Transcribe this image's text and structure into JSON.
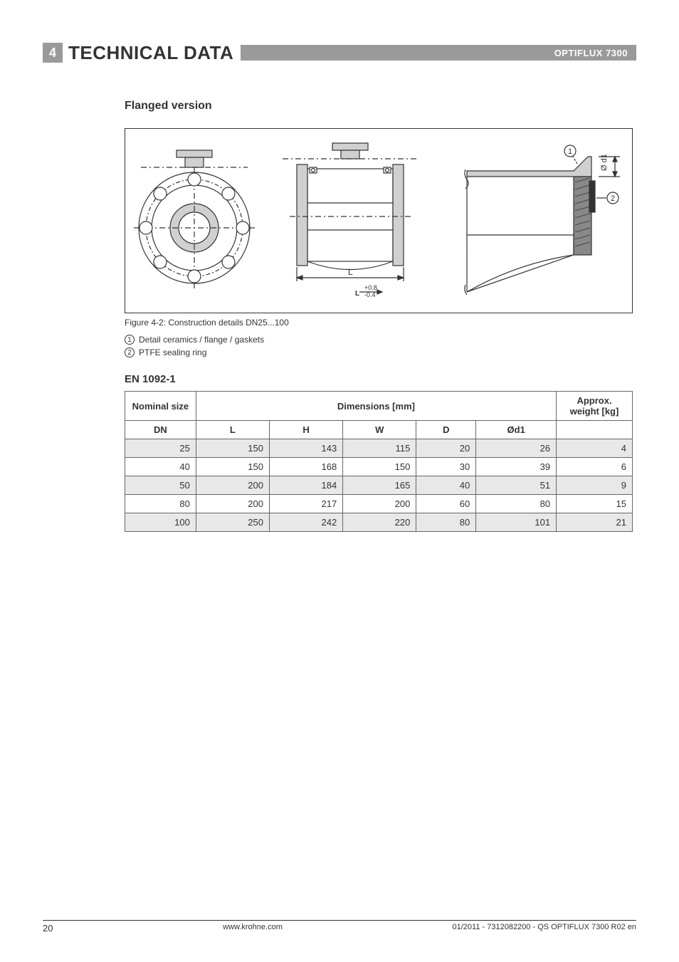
{
  "header": {
    "section_number": "4",
    "section_title": "TECHNICAL DATA",
    "product": "OPTIFLUX 7300"
  },
  "content": {
    "subheading": "Flanged version",
    "figure": {
      "caption": "Figure 4-2: Construction details DN25...100",
      "legend": [
        {
          "num": "1",
          "text": "Detail ceramics / flange / gaskets"
        },
        {
          "num": "2",
          "text": "PTFE sealing ring"
        }
      ],
      "callout1": "1",
      "callout2": "2",
      "label_L": "L",
      "label_tol": "+0.8\n-0.4",
      "label_L_small": "L",
      "label_od1": "Ø d1"
    },
    "table": {
      "standard": "EN 1092-1",
      "headers": {
        "nominal": "Nominal size",
        "dimensions": "Dimensions [mm]",
        "weight": "Approx. weight [kg]",
        "cols": [
          "DN",
          "L",
          "H",
          "W",
          "D",
          "Ød1"
        ]
      },
      "rows": [
        {
          "dn": "25",
          "L": "150",
          "H": "143",
          "W": "115",
          "D": "20",
          "od1": "26",
          "wt": "4",
          "shaded": true
        },
        {
          "dn": "40",
          "L": "150",
          "H": "168",
          "W": "150",
          "D": "30",
          "od1": "39",
          "wt": "6",
          "shaded": false
        },
        {
          "dn": "50",
          "L": "200",
          "H": "184",
          "W": "165",
          "D": "40",
          "od1": "51",
          "wt": "9",
          "shaded": true
        },
        {
          "dn": "80",
          "L": "200",
          "H": "217",
          "W": "200",
          "D": "60",
          "od1": "80",
          "wt": "15",
          "shaded": false
        },
        {
          "dn": "100",
          "L": "250",
          "H": "242",
          "W": "220",
          "D": "80",
          "od1": "101",
          "wt": "21",
          "shaded": true
        }
      ]
    }
  },
  "footer": {
    "page": "20",
    "url": "www.krohne.com",
    "docid": "01/2011 - 7312082200 - QS OPTIFLUX 7300 R02 en"
  },
  "colors": {
    "header_gray": "#9a9a9a",
    "text": "#333333",
    "shade": "#e8e8e8",
    "svg_fill": "#d0d0d0",
    "svg_dark": "#888888"
  }
}
